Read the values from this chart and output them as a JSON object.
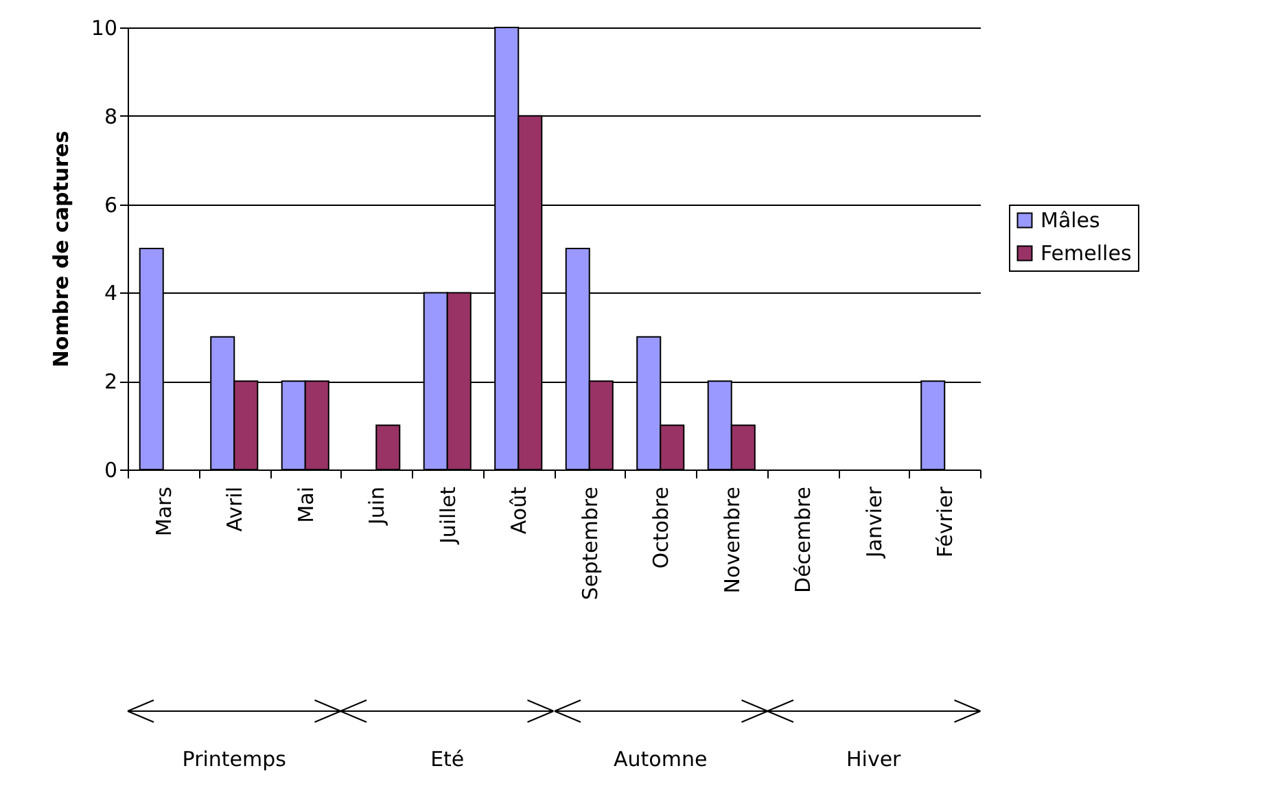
{
  "chart_data": {
    "type": "bar",
    "ylabel": "Nombre de captures",
    "categories": [
      "Mars",
      "Avril",
      "Mai",
      "Juin",
      "Juillet",
      "Août",
      "Septembre",
      "Octobre",
      "Novembre",
      "Décembre",
      "Janvier",
      "Février"
    ],
    "series": [
      {
        "name": "Mâles",
        "color": "#9999ff",
        "values": [
          5,
          3,
          2,
          0,
          4,
          10,
          5,
          3,
          2,
          0,
          0,
          2
        ]
      },
      {
        "name": "Femelles",
        "color": "#993366",
        "values": [
          0,
          2,
          2,
          1,
          4,
          8,
          2,
          1,
          1,
          0,
          0,
          0
        ]
      }
    ],
    "ylim": [
      0,
      10
    ],
    "yticks": [
      0,
      2,
      4,
      6,
      8,
      10
    ],
    "grid": "y",
    "legend": "right",
    "annotations": [
      "Printemps",
      "Eté",
      "Automne",
      "Hiver"
    ]
  }
}
